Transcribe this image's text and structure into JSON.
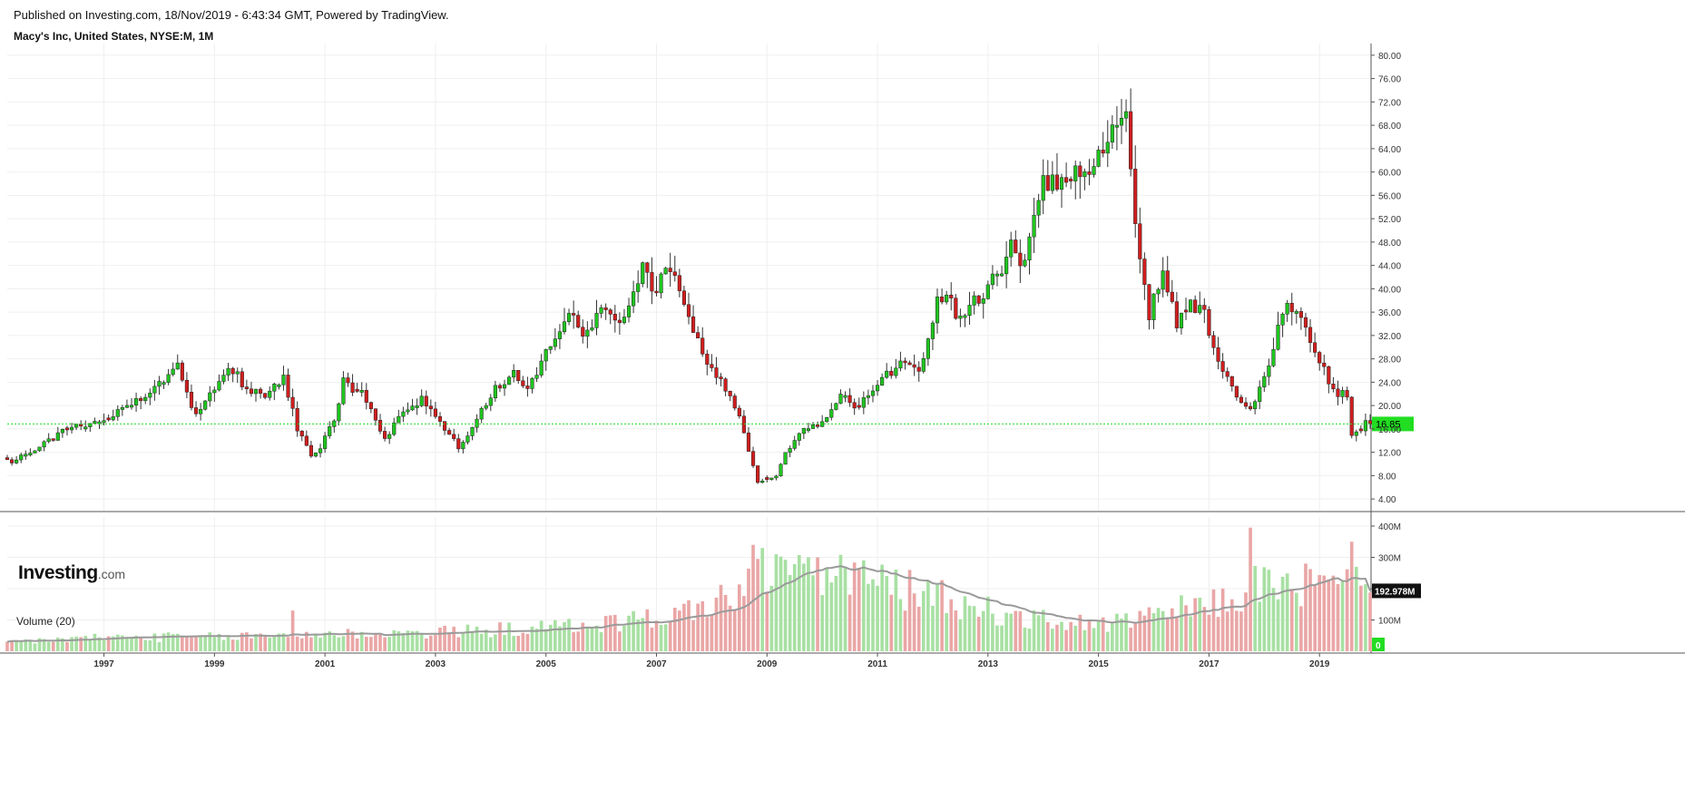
{
  "header": {
    "published": "Published on Investing.com, 18/Nov/2019 - 6:43:34 GMT, Powered by TradingView.",
    "title": "Macy's Inc, United States, NYSE:M, 1M"
  },
  "logo": {
    "main": "Investing",
    "domain": ".com"
  },
  "volume_panel": {
    "label": "Volume (20)"
  },
  "colors": {
    "up": "#1fc51f",
    "down": "#d01e1e",
    "vol_up": "#a8e0a3",
    "vol_down": "#eaa6a6",
    "ma": "#9a9a9a",
    "last_price": "#22dd22",
    "grid": "#efefef",
    "axis": "#555555"
  },
  "chart_data": [
    {
      "type": "candlestick",
      "title": "Macy's Inc, United States, NYSE:M, 1M",
      "x_tick_labels": [
        "1997",
        "1999",
        "2001",
        "2003",
        "2005",
        "2007",
        "2009",
        "2011",
        "2013",
        "2015",
        "2017",
        "2019"
      ],
      "y_tick_labels": [
        "4.00",
        "8.00",
        "12.00",
        "16.00",
        "20.00",
        "24.00",
        "28.00",
        "32.00",
        "36.00",
        "40.00",
        "44.00",
        "48.00",
        "52.00",
        "56.00",
        "60.00",
        "64.00",
        "68.00",
        "72.00",
        "76.00",
        "80.00"
      ],
      "ylim": [
        2,
        82
      ],
      "xlim": [
        "1995-04",
        "2019-12"
      ],
      "last_price": {
        "value": 16.85,
        "label": "16.85"
      },
      "grid": true,
      "close_anchors": [
        [
          "1995-05",
          10.5
        ],
        [
          "1996-01",
          14
        ],
        [
          "1996-06",
          16.5
        ],
        [
          "1997-01",
          17
        ],
        [
          "1997-06",
          20
        ],
        [
          "1997-12",
          23
        ],
        [
          "1998-05",
          27
        ],
        [
          "1998-09",
          18
        ],
        [
          "1998-12",
          22
        ],
        [
          "1999-04",
          27
        ],
        [
          "1999-07",
          24
        ],
        [
          "1999-12",
          21
        ],
        [
          "2000-04",
          25
        ],
        [
          "2000-07",
          16
        ],
        [
          "2000-10",
          11.5
        ],
        [
          "2000-12",
          13
        ],
        [
          "2001-03",
          18
        ],
        [
          "2001-05",
          24
        ],
        [
          "2001-09",
          22
        ],
        [
          "2001-11",
          19
        ],
        [
          "2002-02",
          14
        ],
        [
          "2002-06",
          19
        ],
        [
          "2002-10",
          21
        ],
        [
          "2003-01",
          18
        ],
        [
          "2003-06",
          13
        ],
        [
          "2003-09",
          16
        ],
        [
          "2004-01",
          22
        ],
        [
          "2004-06",
          26
        ],
        [
          "2004-09",
          23
        ],
        [
          "2005-01",
          29
        ],
        [
          "2005-06",
          37
        ],
        [
          "2005-09",
          31
        ],
        [
          "2006-01",
          36
        ],
        [
          "2006-06",
          35
        ],
        [
          "2006-10",
          43
        ],
        [
          "2007-01",
          40
        ],
        [
          "2007-03",
          45
        ],
        [
          "2007-06",
          40
        ],
        [
          "2007-09",
          32
        ],
        [
          "2008-01",
          26
        ],
        [
          "2008-04",
          23
        ],
        [
          "2008-07",
          18
        ],
        [
          "2008-09",
          12
        ],
        [
          "2008-11",
          7
        ],
        [
          "2009-03",
          8
        ],
        [
          "2009-05",
          12
        ],
        [
          "2009-09",
          16
        ],
        [
          "2010-01",
          17
        ],
        [
          "2010-05",
          22
        ],
        [
          "2010-08",
          19
        ],
        [
          "2011-01",
          24
        ],
        [
          "2011-07",
          28
        ],
        [
          "2011-10",
          26
        ],
        [
          "2012-02",
          38
        ],
        [
          "2012-04",
          40
        ],
        [
          "2012-06",
          35
        ],
        [
          "2012-10",
          38
        ],
        [
          "2013-03",
          42
        ],
        [
          "2013-06",
          48
        ],
        [
          "2013-09",
          44
        ],
        [
          "2014-01",
          58
        ],
        [
          "2014-06",
          58
        ],
        [
          "2014-10",
          60
        ],
        [
          "2015-01",
          64
        ],
        [
          "2015-07",
          69
        ],
        [
          "2015-09",
          51
        ],
        [
          "2015-12",
          35
        ],
        [
          "2016-03",
          44
        ],
        [
          "2016-06",
          34
        ],
        [
          "2016-09",
          37
        ],
        [
          "2016-12",
          36
        ],
        [
          "2017-02",
          30
        ],
        [
          "2017-06",
          23
        ],
        [
          "2017-10",
          19
        ],
        [
          "2018-01",
          25
        ],
        [
          "2018-06",
          38
        ],
        [
          "2018-09",
          35
        ],
        [
          "2018-12",
          30
        ],
        [
          "2019-03",
          24
        ],
        [
          "2019-05",
          22
        ],
        [
          "2019-07",
          22
        ],
        [
          "2019-08",
          15
        ],
        [
          "2019-10",
          15.5
        ],
        [
          "2019-11",
          16.85
        ]
      ]
    },
    {
      "type": "bar",
      "title": "Volume (20)",
      "y_tick_labels": [
        "100M",
        "200M",
        "300M",
        "400M"
      ],
      "ylim": [
        0,
        400
      ],
      "unit": "M",
      "last_value": {
        "value": 192.978,
        "label": "192.978M"
      },
      "zero_label": "0",
      "ma_period": 20,
      "volume_anchors": [
        [
          "1995-05",
          30
        ],
        [
          "1997-01",
          45
        ],
        [
          "1999-01",
          45
        ],
        [
          "2001-01",
          55
        ],
        [
          "2003-01",
          60
        ],
        [
          "2005-01",
          75
        ],
        [
          "2006-06",
          95
        ],
        [
          "2007-06",
          120
        ],
        [
          "2008-06",
          180
        ],
        [
          "2009-01",
          260
        ],
        [
          "2009-06",
          270
        ],
        [
          "2010-06",
          250
        ],
        [
          "2011-06",
          200
        ],
        [
          "2012-06",
          160
        ],
        [
          "2013-06",
          110
        ],
        [
          "2014-06",
          90
        ],
        [
          "2015-06",
          90
        ],
        [
          "2016-06",
          130
        ],
        [
          "2017-06",
          160
        ],
        [
          "2017-11",
          230
        ],
        [
          "2018-06",
          200
        ],
        [
          "2019-06",
          210
        ],
        [
          "2019-11",
          190
        ]
      ],
      "volume_spikes": [
        [
          "2000-06",
          130
        ],
        [
          "2008-10",
          340
        ],
        [
          "2008-12",
          330
        ],
        [
          "2009-03",
          310
        ],
        [
          "2009-12",
          300
        ],
        [
          "2017-10",
          395
        ],
        [
          "2018-10",
          280
        ],
        [
          "2019-08",
          350
        ],
        [
          "2019-09",
          270
        ]
      ]
    }
  ]
}
